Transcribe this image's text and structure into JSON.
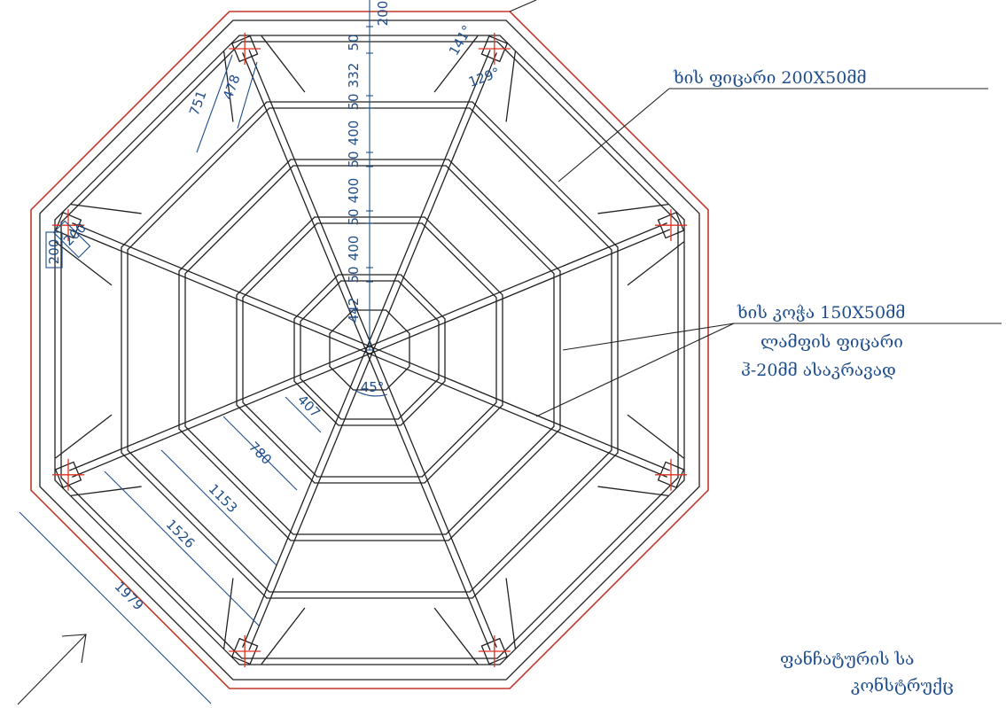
{
  "labels": {
    "plank": "ხის ფიცარი 200X50მმ",
    "beam": "ხის კოჭა 150X50მმ",
    "lamp_1": "ლამფის ფიცარი",
    "lamp_2": "ჰ-20მმ ასაკრავად",
    "title_1": "ფანჩატურის სა",
    "title_2": "კონსტრუქც"
  },
  "dimensions": {
    "vertical": [
      200,
      50,
      332,
      50,
      400,
      50,
      400,
      50,
      400,
      50,
      442
    ],
    "diagonal": [
      407,
      780,
      1153,
      1526,
      1979
    ],
    "post": [
      751,
      478
    ],
    "post_side": [
      200,
      200
    ],
    "angles": [
      "141°",
      "129°",
      "45°"
    ]
  }
}
